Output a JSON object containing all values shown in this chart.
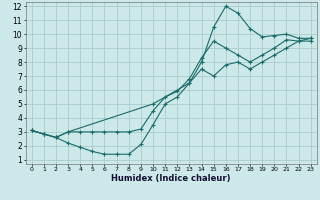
{
  "xlabel": "Humidex (Indice chaleur)",
  "bg_color": "#cce8e8",
  "grid_color": "#aacccc",
  "line_color": "#1a6b6b",
  "xlim": [
    0,
    23
  ],
  "ylim": [
    1,
    12
  ],
  "xticks": [
    0,
    1,
    2,
    3,
    4,
    5,
    6,
    7,
    8,
    9,
    10,
    11,
    12,
    13,
    14,
    15,
    16,
    17,
    18,
    19,
    20,
    21,
    22,
    23
  ],
  "yticks": [
    1,
    2,
    3,
    4,
    5,
    6,
    7,
    8,
    9,
    10,
    11,
    12
  ],
  "line1_x": [
    0,
    1,
    2,
    3,
    4,
    5,
    6,
    7,
    8,
    9,
    10,
    11,
    12,
    13,
    14,
    15,
    16,
    17,
    18,
    19,
    20,
    21,
    22,
    23
  ],
  "line1_y": [
    3.1,
    2.85,
    2.6,
    3.0,
    3.0,
    3.0,
    3.0,
    3.0,
    3.0,
    3.2,
    4.5,
    5.5,
    5.9,
    6.8,
    8.3,
    9.5,
    9.0,
    8.5,
    8.0,
    8.5,
    9.0,
    9.6,
    9.5,
    9.5
  ],
  "line2_x": [
    0,
    1,
    2,
    3,
    4,
    5,
    6,
    7,
    8,
    9,
    10,
    11,
    12,
    13,
    14,
    15,
    16,
    17,
    18,
    19,
    20,
    21,
    22,
    23
  ],
  "line2_y": [
    3.1,
    2.85,
    2.6,
    2.2,
    1.9,
    1.6,
    1.4,
    1.4,
    1.4,
    2.1,
    3.5,
    5.0,
    5.5,
    6.5,
    8.0,
    10.5,
    12.0,
    11.5,
    10.4,
    9.8,
    9.9,
    10.0,
    9.7,
    9.7
  ],
  "line3_x": [
    0,
    1,
    2,
    3,
    10,
    13,
    14,
    15,
    16,
    17,
    18,
    19,
    20,
    21,
    22,
    23
  ],
  "line3_y": [
    3.1,
    2.85,
    2.6,
    3.0,
    5.0,
    6.5,
    7.5,
    7.0,
    7.8,
    8.0,
    7.5,
    8.0,
    8.5,
    9.0,
    9.5,
    9.7
  ]
}
